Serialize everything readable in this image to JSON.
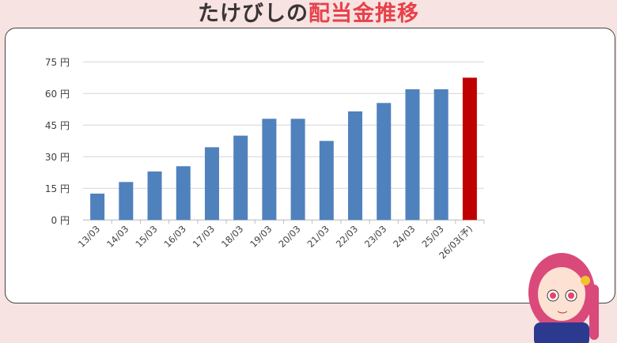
{
  "title": {
    "part1": "たけびしの",
    "part2": "配当金推移"
  },
  "colors": {
    "bar": "#4f81bd",
    "forecast": "#c00000",
    "grid": "#d9d9d9",
    "title_accent": "#e8414a"
  },
  "chart_data": {
    "type": "bar",
    "title": "たけびしの配当金推移",
    "xlabel": "",
    "ylabel": "",
    "ylim": [
      0,
      75
    ],
    "yticks": [
      0,
      15,
      30,
      45,
      60,
      75
    ],
    "ytick_labels": [
      "0 円",
      "15 円",
      "30 円",
      "45 円",
      "60 円",
      "75 円"
    ],
    "grid": true,
    "categories": [
      "13/03",
      "14/03",
      "15/03",
      "16/03",
      "17/03",
      "18/03",
      "19/03",
      "20/03",
      "21/03",
      "22/03",
      "23/03",
      "24/03",
      "25/03",
      "26/03(予)"
    ],
    "values": [
      12.5,
      18,
      23,
      25.5,
      34.5,
      40,
      48,
      48,
      37.5,
      51.5,
      55.5,
      62,
      62,
      67.5
    ],
    "forecast_index": 13
  }
}
